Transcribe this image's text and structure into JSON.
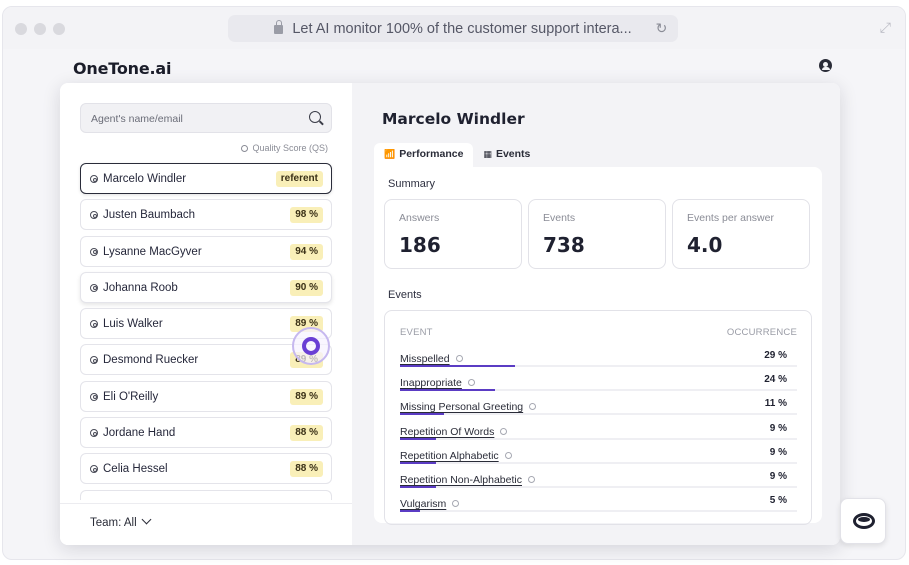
{
  "browser": {
    "url_text": "Let AI monitor 100% of the customer support intera..."
  },
  "app": {
    "brand": "OneTone.ai"
  },
  "sidebar": {
    "search_placeholder": "Agent's name/email",
    "quality_label": "Quality Score (QS)",
    "agents": [
      {
        "name": "Marcelo Windler",
        "score": "referent",
        "selected": true
      },
      {
        "name": "Justen Baumbach",
        "score": "98 %"
      },
      {
        "name": "Lysanne MacGyver",
        "score": "94 %"
      },
      {
        "name": "Johanna Roob",
        "score": "90 %"
      },
      {
        "name": "Luis Walker",
        "score": "89 %"
      },
      {
        "name": "Desmond Ruecker",
        "score": "89 %"
      },
      {
        "name": "Eli O'Reilly",
        "score": "89 %"
      },
      {
        "name": "Jordane Hand",
        "score": "88 %"
      },
      {
        "name": "Celia Hessel",
        "score": "88 %"
      }
    ],
    "team_filter": "Team: All"
  },
  "detail": {
    "agent_name": "Marcelo Windler",
    "tabs": [
      "Performance",
      "Events"
    ],
    "summary_title": "Summary",
    "stats": [
      {
        "label": "Answers",
        "value": "186"
      },
      {
        "label": "Events",
        "value": "738"
      },
      {
        "label": "Events per answer",
        "value": "4.0"
      }
    ],
    "events_title": "Events",
    "events_header": {
      "event": "EVENT",
      "occurrence": "OCCURRENCE"
    },
    "events": [
      {
        "name": "Misspelled",
        "pct": "29 %",
        "fraction": 0.29
      },
      {
        "name": "Inappropriate",
        "pct": "24 %",
        "fraction": 0.24
      },
      {
        "name": "Missing Personal Greeting",
        "pct": "11 %",
        "fraction": 0.11
      },
      {
        "name": "Repetition Of Words",
        "pct": "9 %",
        "fraction": 0.09
      },
      {
        "name": "Repetition Alphabetic",
        "pct": "9 %",
        "fraction": 0.09
      },
      {
        "name": "Repetition Non-Alphabetic",
        "pct": "9 %",
        "fraction": 0.09
      },
      {
        "name": "Vulgarism",
        "pct": "5 %",
        "fraction": 0.05
      }
    ]
  },
  "colors": {
    "accent": "#5b3cc4",
    "score_badge": "#f9efb8"
  }
}
